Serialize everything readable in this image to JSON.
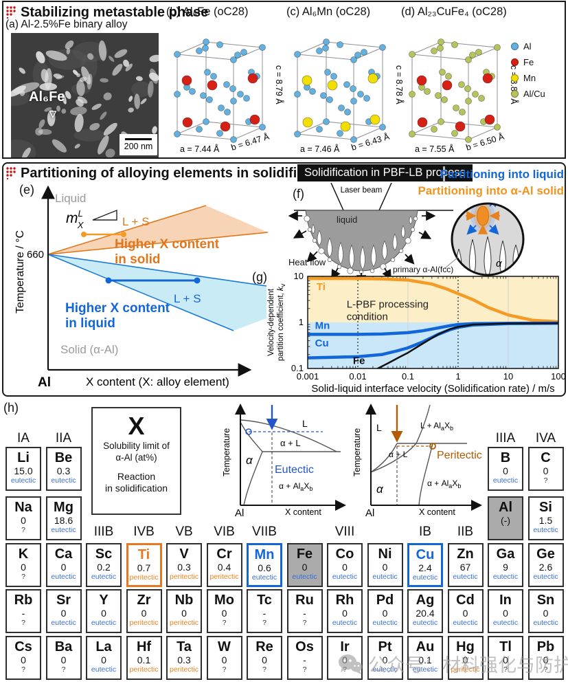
{
  "colors": {
    "accent_orange": "#e87722",
    "accent_blue": "#1266d8",
    "eutectic_blue": "#3b6fd4",
    "peritectic_orange": "#e8821e",
    "badge_bg": "#111111",
    "section_red": "#cc1111",
    "gray_cell": "#ababab",
    "chart_bg_top": "#fcefc8",
    "chart_bg_bottom": "#c9e7f8"
  },
  "sections": {
    "metastable": {
      "title": "Stabilizing metastable phase",
      "panel_a": {
        "label": "(a) Al-2.5%Fe binary alloy",
        "annotation": "Al₆Fe",
        "arrow": "▽",
        "scale_bar": "200 nm"
      },
      "crystals": [
        {
          "label": "(b) Al₆Fe (oC28)",
          "a": "a = 7.44 Å",
          "b": "b = 6.47 Å",
          "c": "c = 8.79 Å",
          "main_color": "#62b1e0",
          "solute_color": "#d62016"
        },
        {
          "label": "(c) Al₆Mn (oC28)",
          "a": "a = 7.46 Å",
          "b": "b = 6.43 Å",
          "c": "c = 8.78 Å",
          "main_color": "#62b1e0",
          "solute_color": "#f2df00"
        },
        {
          "label": "(d) Al₂₃CuFe₄ (oC28)",
          "a": "a = 7.55 Å",
          "b": "b = 6.50 Å",
          "c": "c = 8.87 Å",
          "main_color": "#b7c45c",
          "solute_color": "#d62016"
        }
      ],
      "legend": [
        {
          "label": "Al",
          "color": "#62b1e0"
        },
        {
          "label": "Fe",
          "color": "#d62016"
        },
        {
          "label": "Mn",
          "color": "#f2df00"
        },
        {
          "label": "Al/Cu",
          "color": "#b7c45c"
        }
      ]
    },
    "partitioning": {
      "title": "Partitioning of alloying elements in solidification",
      "badge": "Solidification in PBF-LB process",
      "into_liquid": "Partitioning into liquid",
      "into_solid": "Partitioning into α-Al solid",
      "panel_e": {
        "label": "(e)",
        "ylabel": "Temperature / °C",
        "tick_660": "660",
        "liquid": "Liquid",
        "slope_m": "m",
        "slope_sup": "L",
        "slope_sub": "X",
        "ls_orange": "L + S",
        "higher_solid_1": "Higher X content",
        "higher_solid_2": "in solid",
        "ls_blue": "L + S",
        "higher_liquid_1": "Higher X content",
        "higher_liquid_2": "in liquid",
        "solid_alpha": "Solid (α-Al)",
        "origin": "Al",
        "xlabel": "X content (X: alloy element)"
      },
      "panel_f": {
        "label": "(f)",
        "laser": "Laser beam",
        "liquid": "liquid",
        "heat_flow": "Heat flow",
        "primary": "primary α-Al(fcc)",
        "alpha": "α"
      },
      "panel_g_label": "(g)"
    },
    "periodic": {
      "label": "(h)",
      "legend_box": {
        "symbol": "X",
        "line1": "Solubility limit of",
        "line2": "α-Al (at%)",
        "line3": "Reaction",
        "line4": "in solidification"
      },
      "eutectic_diagram": {
        "ylabel": "Temperature",
        "xlabel": "X content",
        "origin": "Al",
        "L": "L",
        "alphaL": "α + L",
        "alpha": "α",
        "reaction": "Eutectic",
        "twophase_pre": "α + Al",
        "sub_a": "a",
        "X": "X",
        "sub_b": "b"
      },
      "peritectic_diagram": {
        "ylabel": "Temperature",
        "xlabel": "X content",
        "origin": "Al",
        "L": "L",
        "LC_pre": "L + Al",
        "alphaL": "α + L",
        "alpha": "α",
        "reaction": "Peritectic",
        "twophase_pre": "α + Al",
        "sub_a": "a",
        "X": "X",
        "sub_b": "b"
      },
      "group_headers": [
        {
          "label": "IA",
          "col": 0,
          "row": "top"
        },
        {
          "label": "IIA",
          "col": 1,
          "row": "top"
        },
        {
          "label": "IIIA",
          "col": 12,
          "row": "top"
        },
        {
          "label": "IVA",
          "col": 13,
          "row": "top"
        },
        {
          "label": "IIIB",
          "col": 2,
          "row": "mid"
        },
        {
          "label": "IVB",
          "col": 3,
          "row": "mid"
        },
        {
          "label": "VB",
          "col": 4,
          "row": "mid"
        },
        {
          "label": "VIB",
          "col": 5,
          "row": "mid"
        },
        {
          "label": "VIIB",
          "col": 6,
          "row": "mid"
        },
        {
          "label": "VIII",
          "col": 8,
          "row": "mid"
        },
        {
          "label": "IB",
          "col": 10,
          "row": "mid"
        },
        {
          "label": "IIB",
          "col": 11,
          "row": "mid"
        }
      ],
      "cells": [
        {
          "el": "Li",
          "val": "15.0",
          "rx": "eutectic",
          "row": 0,
          "col": 0
        },
        {
          "el": "Be",
          "val": "0.3",
          "rx": "eutectic",
          "row": 0,
          "col": 1
        },
        {
          "el": "B",
          "val": "0",
          "rx": "eutectic",
          "row": 0,
          "col": 12
        },
        {
          "el": "C",
          "val": "0",
          "rx": "?",
          "row": 0,
          "col": 13
        },
        {
          "el": "Na",
          "val": "0",
          "rx": "?",
          "row": 1,
          "col": 0
        },
        {
          "el": "Mg",
          "val": "18.6",
          "rx": "eutectic",
          "row": 1,
          "col": 1
        },
        {
          "el": "Al",
          "val": "(-)",
          "rx": "",
          "row": 1,
          "col": 12,
          "style": "gray"
        },
        {
          "el": "Si",
          "val": "1.5",
          "rx": "eutectic",
          "row": 1,
          "col": 13
        },
        {
          "el": "K",
          "val": "0",
          "rx": "?",
          "row": 2,
          "col": 0
        },
        {
          "el": "Ca",
          "val": "0",
          "rx": "eutectic",
          "row": 2,
          "col": 1
        },
        {
          "el": "Sc",
          "val": "0.2",
          "rx": "eutectic",
          "row": 2,
          "col": 2
        },
        {
          "el": "Ti",
          "val": "0.7",
          "rx": "peritectic",
          "row": 2,
          "col": 3,
          "style": "orange-border"
        },
        {
          "el": "V",
          "val": "0.3",
          "rx": "peritectic",
          "row": 2,
          "col": 4
        },
        {
          "el": "Cr",
          "val": "0.4",
          "rx": "peritectic",
          "row": 2,
          "col": 5
        },
        {
          "el": "Mn",
          "val": "0.6",
          "rx": "eutectic",
          "row": 2,
          "col": 6,
          "style": "blue-border"
        },
        {
          "el": "Fe",
          "val": "0",
          "rx": "eutectic",
          "row": 2,
          "col": 7,
          "style": "gray"
        },
        {
          "el": "Co",
          "val": "0",
          "rx": "eutectic",
          "row": 2,
          "col": 8
        },
        {
          "el": "Ni",
          "val": "0",
          "rx": "eutectic",
          "row": 2,
          "col": 9
        },
        {
          "el": "Cu",
          "val": "2.4",
          "rx": "eutectic",
          "row": 2,
          "col": 10,
          "style": "blue-border"
        },
        {
          "el": "Zn",
          "val": "67",
          "rx": "eutectic",
          "row": 2,
          "col": 11
        },
        {
          "el": "Ga",
          "val": "9",
          "rx": "eutectic",
          "row": 2,
          "col": 12
        },
        {
          "el": "Ge",
          "val": "2.6",
          "rx": "eutectic",
          "row": 2,
          "col": 13
        },
        {
          "el": "Rb",
          "val": "-",
          "rx": "?",
          "row": 3,
          "col": 0
        },
        {
          "el": "Sr",
          "val": "0",
          "rx": "eutectic",
          "row": 3,
          "col": 1
        },
        {
          "el": "Y",
          "val": "0",
          "rx": "eutectic",
          "row": 3,
          "col": 2
        },
        {
          "el": "Zr",
          "val": "0",
          "rx": "peritectic",
          "row": 3,
          "col": 3
        },
        {
          "el": "Nb",
          "val": "0",
          "rx": "peritectic",
          "row": 3,
          "col": 4
        },
        {
          "el": "Mo",
          "val": "0",
          "rx": "?",
          "row": 3,
          "col": 5
        },
        {
          "el": "Tc",
          "val": "-",
          "rx": "?",
          "row": 3,
          "col": 6
        },
        {
          "el": "Ru",
          "val": "-",
          "rx": "?",
          "row": 3,
          "col": 7
        },
        {
          "el": "Rh",
          "val": "0",
          "rx": "eutectic",
          "row": 3,
          "col": 8
        },
        {
          "el": "Pd",
          "val": "0",
          "rx": "eutectic",
          "row": 3,
          "col": 9
        },
        {
          "el": "Ag",
          "val": "20.4",
          "rx": "eutectic",
          "row": 3,
          "col": 10
        },
        {
          "el": "Cd",
          "val": "0",
          "rx": "eutectic",
          "row": 3,
          "col": 11
        },
        {
          "el": "In",
          "val": "0",
          "rx": "eutectic",
          "row": 3,
          "col": 12
        },
        {
          "el": "Sn",
          "val": "0",
          "rx": "eutectic",
          "row": 3,
          "col": 13
        },
        {
          "el": "Cs",
          "val": "0",
          "rx": "?",
          "row": 4,
          "col": 0
        },
        {
          "el": "Ba",
          "val": "0",
          "rx": "?",
          "row": 4,
          "col": 1
        },
        {
          "el": "La",
          "val": "0",
          "rx": "eutectic",
          "row": 4,
          "col": 2
        },
        {
          "el": "Hf",
          "val": "0.1",
          "rx": "peritectic",
          "row": 4,
          "col": 3
        },
        {
          "el": "Ta",
          "val": "0.3",
          "rx": "peritectic",
          "row": 4,
          "col": 4
        },
        {
          "el": "W",
          "val": "0",
          "rx": "?",
          "row": 4,
          "col": 5
        },
        {
          "el": "Re",
          "val": "0",
          "rx": "?",
          "row": 4,
          "col": 6
        },
        {
          "el": "Os",
          "val": "-",
          "rx": "?",
          "row": 4,
          "col": 7
        },
        {
          "el": "Ir",
          "val": "0",
          "rx": "?",
          "row": 4,
          "col": 8
        },
        {
          "el": "Pt",
          "val": "0",
          "rx": "eutectic",
          "row": 4,
          "col": 9
        },
        {
          "el": "Au",
          "val": "0.1",
          "rx": "eutectic",
          "row": 4,
          "col": 10
        },
        {
          "el": "Hg",
          "val": "0",
          "rx": "peritectic",
          "row": 4,
          "col": 11
        },
        {
          "el": "Tl",
          "val": "0",
          "rx": "?",
          "row": 4,
          "col": 12
        },
        {
          "el": "Pb",
          "val": "0",
          "rx": "?",
          "row": 4,
          "col": 13
        }
      ]
    },
    "watermark": "公众号：材料强化与防护"
  },
  "chart_data": {
    "type": "line",
    "xscale": "log",
    "yscale": "log",
    "xlim": [
      0.001,
      100
    ],
    "ylim": [
      0.1,
      10
    ],
    "xticks": [
      0.001,
      0.01,
      0.1,
      1,
      10,
      100
    ],
    "yticks": [
      10,
      1,
      0.1
    ],
    "xlabel": "Solid-liquid interface velocity (Solidification rate) / m/s",
    "ylabel_1": "Velocity-dependent",
    "ylabel_2": "partition coefficient, ",
    "ylabel_k": "k",
    "ylabel_v": "v",
    "annotation_lines": [
      "L-PBF processing",
      "condition"
    ],
    "dashed_vlines": [
      0.01,
      1
    ],
    "gray_vlines": [
      0.1,
      10
    ],
    "series": [
      {
        "name": "Ti",
        "color": "#f59a23",
        "width": 4.5,
        "x": [
          0.001,
          0.003,
          0.01,
          0.03,
          0.1,
          0.3,
          0.6,
          1,
          2,
          4,
          10,
          30,
          100
        ],
        "y": [
          9,
          9,
          8.95,
          8.8,
          8.3,
          6.8,
          5.3,
          4.2,
          3.1,
          2.1,
          1.45,
          1.12,
          1.03
        ]
      },
      {
        "name": "Mn",
        "color": "#1266d8",
        "width": 4.5,
        "x": [
          0.001,
          0.01,
          0.03,
          0.1,
          0.2,
          0.4,
          0.7,
          1,
          2,
          10,
          100
        ],
        "y": [
          0.55,
          0.55,
          0.56,
          0.6,
          0.66,
          0.76,
          0.85,
          0.9,
          0.94,
          0.96,
          0.97
        ]
      },
      {
        "name": "Cu",
        "color": "#1266d8",
        "width": 4.5,
        "x": [
          0.001,
          0.01,
          0.03,
          0.06,
          0.1,
          0.2,
          0.4,
          0.7,
          1,
          2,
          10,
          100
        ],
        "y": [
          0.17,
          0.18,
          0.2,
          0.24,
          0.28,
          0.38,
          0.55,
          0.7,
          0.78,
          0.88,
          0.94,
          0.96
        ]
      },
      {
        "name": "Fe",
        "color": "#111111",
        "width": 2.5,
        "x": [
          0.025,
          0.04,
          0.07,
          0.1,
          0.2,
          0.4,
          0.7,
          1,
          2,
          10,
          100
        ],
        "y": [
          0.1,
          0.13,
          0.18,
          0.22,
          0.35,
          0.55,
          0.72,
          0.8,
          0.9,
          0.95,
          0.96
        ]
      }
    ]
  }
}
